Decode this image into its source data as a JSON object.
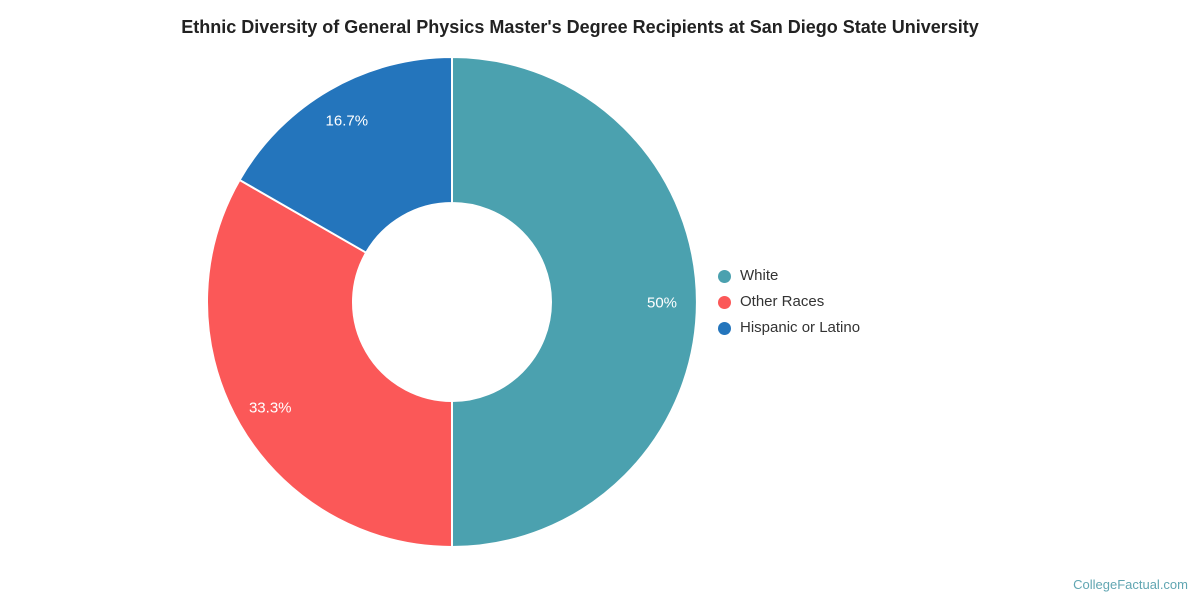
{
  "chart_data": {
    "type": "pie",
    "subtype": "donut",
    "title": "Ethnic Diversity of General Physics Master's Degree Recipients at San Diego State University",
    "labels": [
      "White",
      "Other Races",
      "Hispanic or Latino"
    ],
    "values": [
      50,
      33.3,
      16.7
    ],
    "slice_labels": [
      "50%",
      "33.3%",
      "16.7%"
    ],
    "colors": [
      "#4BA1AF",
      "#FB5858",
      "#2475BC"
    ],
    "legend_position": "right",
    "start_angle_deg": 0,
    "direction": "clockwise",
    "slice_border_color": "#ffffff",
    "background": "#ffffff"
  },
  "watermark": {
    "text": "CollegeFactual.com",
    "color": "#61A6B2"
  }
}
